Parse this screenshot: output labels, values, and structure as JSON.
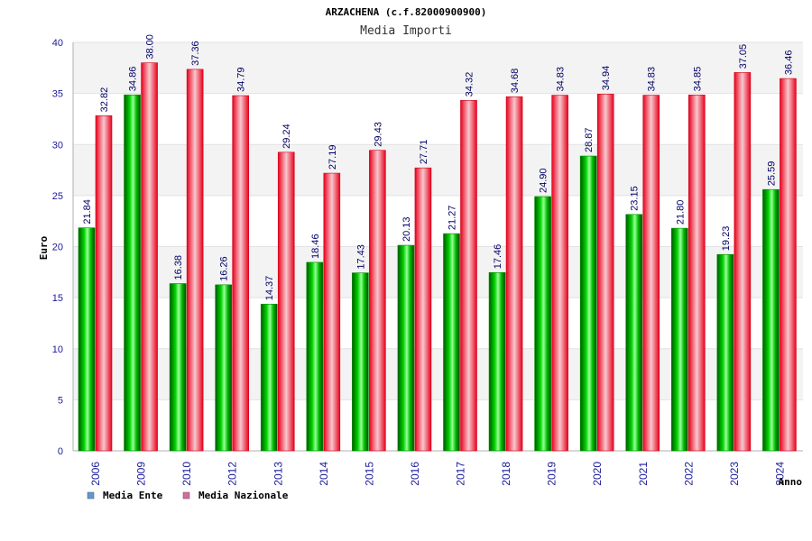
{
  "chart_data": {
    "type": "bar",
    "title": "ARZACHENA (c.f.82000900900)",
    "subtitle": "Media Importi",
    "xlabel": "Anno",
    "ylabel": "Euro",
    "ylim": [
      0,
      40
    ],
    "yticks": [
      0,
      5,
      10,
      15,
      20,
      25,
      30,
      35,
      40
    ],
    "categories": [
      "2006",
      "2009",
      "2010",
      "2012",
      "2013",
      "2014",
      "2015",
      "2016",
      "2017",
      "2018",
      "2019",
      "2020",
      "2021",
      "2022",
      "2023",
      "2024"
    ],
    "series": [
      {
        "name": "Media Ente",
        "values": [
          21.84,
          34.86,
          16.38,
          16.26,
          14.37,
          18.46,
          17.43,
          20.13,
          21.27,
          17.46,
          24.9,
          28.87,
          23.15,
          21.8,
          19.23,
          25.59
        ],
        "labels": [
          "21.84",
          "34.86",
          "16.38",
          "16.26",
          "14.37",
          "18.46",
          "17.43",
          "20.13",
          "21.27",
          "17.46",
          "24.90",
          "28.87",
          "23.15",
          "21.80",
          "19.23",
          "25.59"
        ],
        "color": "#00b400",
        "legend_color": "#5b9bd5"
      },
      {
        "name": "Media Nazionale",
        "values": [
          32.82,
          38.0,
          37.36,
          34.79,
          29.24,
          27.19,
          29.43,
          27.71,
          34.32,
          34.68,
          34.83,
          34.94,
          34.83,
          34.85,
          37.05,
          36.46
        ],
        "labels": [
          "32.82",
          "38.00",
          "37.36",
          "34.79",
          "29.24",
          "27.19",
          "29.43",
          "27.71",
          "34.32",
          "34.68",
          "34.83",
          "34.94",
          "34.83",
          "34.85",
          "37.05",
          "36.46"
        ],
        "color": "#e8001c",
        "legend_color": "#d96aa0"
      }
    ],
    "grid": true,
    "legend": "bottom-left"
  }
}
